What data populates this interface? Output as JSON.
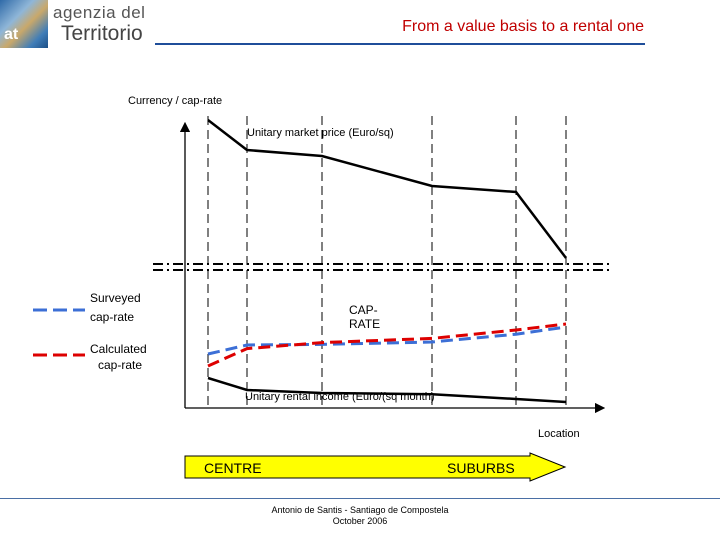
{
  "header": {
    "logo_line1": "agenzia del",
    "logo_line2": "Territorio",
    "logo_badge": "at",
    "title": "From a value basis to a rental one"
  },
  "footer": {
    "line1": "Antonio de Santis - Santiago de Compostela",
    "line2": "October 2006"
  },
  "chart_data": {
    "type": "line",
    "ylabel": "Currency / cap-rate",
    "xlabel": "Location",
    "arrow": {
      "left": "CENTRE",
      "right": "SUBURBS"
    },
    "x": [
      1,
      2,
      3,
      4,
      5,
      6
    ],
    "series": [
      {
        "name": "Unitary market price (Euro/sq)",
        "values": [
          63,
          58,
          57,
          52,
          51,
          40
        ]
      },
      {
        "name": "Unitary rental income (Euro/(sq month)",
        "values": [
          20,
          18,
          17.5,
          17.3,
          16.5,
          16
        ]
      },
      {
        "name": "Surveyed cap-rate",
        "values": [
          24,
          25.5,
          25.6,
          26,
          27.3,
          28.5
        ]
      },
      {
        "name": "Calculated cap-rate",
        "values": [
          22,
          24.9,
          25.9,
          26.6,
          28,
          29
        ]
      }
    ],
    "legend": [
      {
        "label": "Surveyed cap-rate",
        "color": "#3c6fd6",
        "style": "dashed"
      },
      {
        "label": "Calculated cap-rate",
        "color": "#dd0000",
        "style": "dashed"
      }
    ],
    "annotation": "CAP-RATE",
    "colors": {
      "price": "#000000",
      "rental": "#000000",
      "surveyed": "#3c6fd6",
      "calculated": "#dd0000",
      "arrow": "#ffff00"
    }
  }
}
